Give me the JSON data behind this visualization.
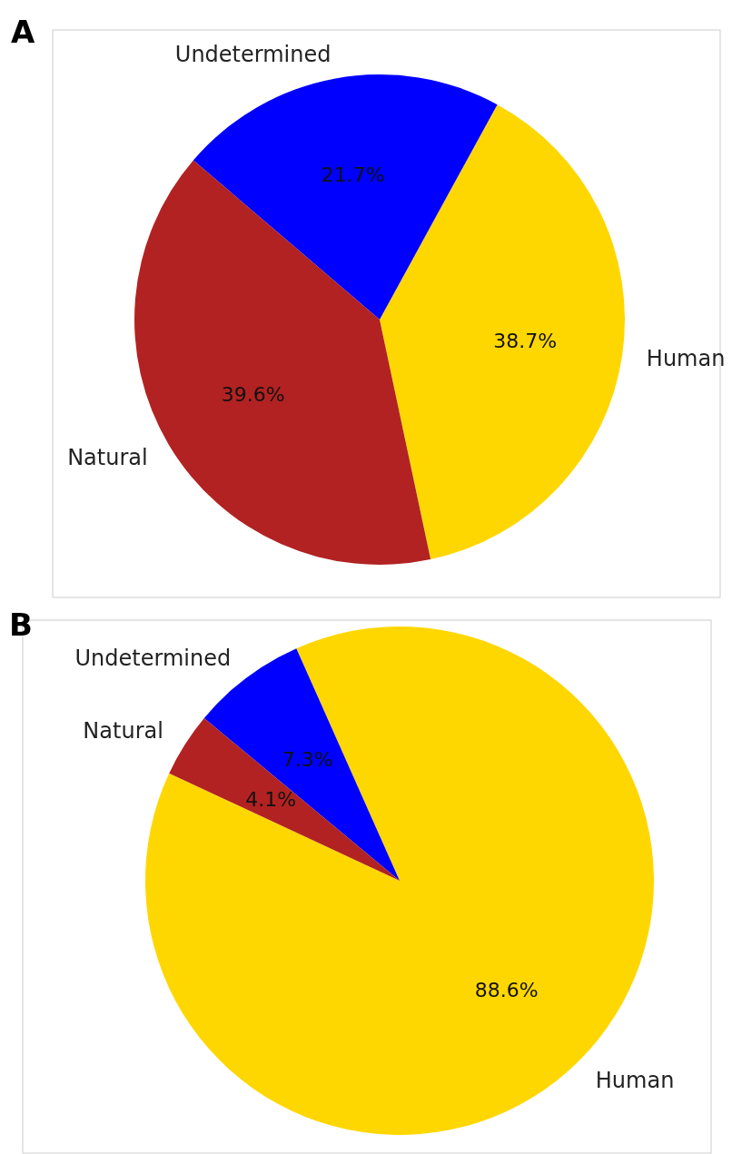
{
  "chart_data": [
    {
      "type": "pie",
      "title": "A",
      "categories": [
        "Human",
        "Undetermined",
        "Natural"
      ],
      "values": [
        38.7,
        21.7,
        39.6
      ],
      "colors": [
        "#ffd700",
        "#0000ff",
        "#b22222"
      ],
      "value_labels": [
        "38.7%",
        "21.7%",
        "39.6%"
      ]
    },
    {
      "type": "pie",
      "title": "B",
      "categories": [
        "Human",
        "Undetermined",
        "Natural"
      ],
      "values": [
        88.6,
        7.3,
        4.1
      ],
      "colors": [
        "#ffd700",
        "#0000ff",
        "#b22222"
      ],
      "value_labels": [
        "88.6%",
        "7.3%",
        "4.1%"
      ]
    }
  ]
}
